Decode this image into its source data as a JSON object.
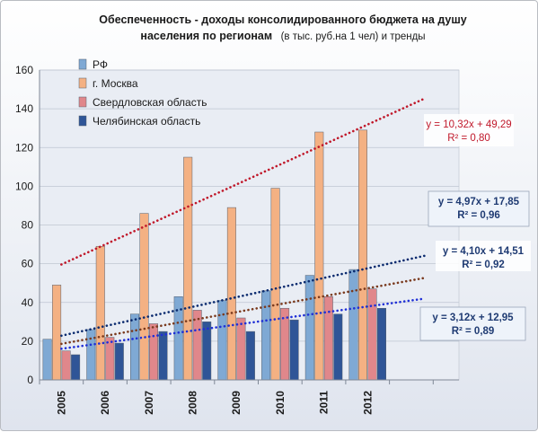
{
  "chart_data": {
    "type": "bar",
    "title": "Обеспеченность  - доходы консолидированного бюджета  на душу",
    "subtitle_main": "населения по регионам",
    "subtitle_note": "(в тыс. руб.на 1 чел) и тренды",
    "categories": [
      "2005",
      "2006",
      "2007",
      "2008",
      "2009",
      "2010",
      "2011",
      "2012"
    ],
    "ylim": [
      0,
      160
    ],
    "yticks": [
      0,
      20,
      40,
      60,
      80,
      100,
      120,
      140,
      160
    ],
    "legend_position": "top-left",
    "series": [
      {
        "name": "РФ",
        "color": "#7fa9d4",
        "values": [
          21,
          26,
          34,
          43,
          41,
          46,
          54,
          57
        ],
        "trend": {
          "slope": 4.97,
          "intercept": 17.85,
          "color": "#0a2a6e",
          "label": "y = 4,97x + 17,85",
          "r2": "R² = 0,96"
        }
      },
      {
        "name": "г. Москва",
        "color": "#f4b183",
        "values": [
          49,
          69,
          86,
          115,
          89,
          99,
          128,
          129
        ],
        "trend": {
          "slope": 10.32,
          "intercept": 49.29,
          "color": "#c0182a",
          "label": "y = 10,32x + 49,29",
          "r2": "R² = 0,80"
        }
      },
      {
        "name": "Свердловская область",
        "color": "#e0878b",
        "values": [
          15,
          22,
          29,
          36,
          32,
          37,
          43,
          47
        ],
        "trend": {
          "slope": 4.1,
          "intercept": 14.51,
          "color": "#7a3a1e",
          "label": "y = 4,10x + 14,51",
          "r2": "R² = 0,92"
        }
      },
      {
        "name": "Челябинская область",
        "color": "#2f5597",
        "values": [
          13,
          19,
          25,
          30,
          25,
          31,
          34,
          37
        ],
        "trend": {
          "slope": 3.12,
          "intercept": 12.95,
          "color": "#1f2fd6",
          "label": "y = 3,12x + 12,95",
          "r2": "R² = 0,89"
        }
      }
    ]
  }
}
